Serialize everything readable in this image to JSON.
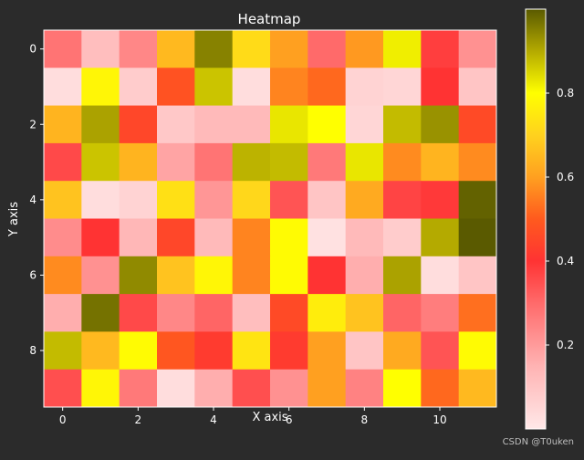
{
  "chart_data": {
    "type": "heatmap",
    "title": "Heatmap",
    "xlabel": "X axis",
    "ylabel": "Y axis",
    "x_tick_labels": [
      "0",
      "2",
      "4",
      "6",
      "8",
      "10"
    ],
    "x_tick_values": [
      0,
      2,
      4,
      6,
      8,
      10
    ],
    "y_tick_labels": [
      "0",
      "2",
      "4",
      "6",
      "8"
    ],
    "y_tick_values": [
      0,
      2,
      4,
      6,
      8
    ],
    "xlim": [
      -0.5,
      11.5
    ],
    "ylim": [
      9.5,
      -0.5
    ],
    "n_cols": 12,
    "n_rows": 10,
    "grid": false,
    "colormap": "pink-red-orange-yellow-olive",
    "color_stops": [
      {
        "v": 0.0,
        "color": "#ffe8e8"
      },
      {
        "v": 0.15,
        "color": "#ffb3b3"
      },
      {
        "v": 0.3,
        "color": "#ff6a6a"
      },
      {
        "v": 0.4,
        "color": "#ff3333"
      },
      {
        "v": 0.5,
        "color": "#ff5a1e"
      },
      {
        "v": 0.6,
        "color": "#ffa020"
      },
      {
        "v": 0.7,
        "color": "#ffd21e"
      },
      {
        "v": 0.8,
        "color": "#ffff00"
      },
      {
        "v": 0.9,
        "color": "#b4aa00"
      },
      {
        "v": 1.0,
        "color": "#5a5a00"
      }
    ],
    "values": [
      [
        0.28,
        0.12,
        0.24,
        0.65,
        0.95,
        0.72,
        0.6,
        0.3,
        0.59,
        0.82,
        0.38,
        0.22
      ],
      [
        0.03,
        0.78,
        0.08,
        0.48,
        0.87,
        0.03,
        0.56,
        0.52,
        0.06,
        0.05,
        0.4,
        0.1
      ],
      [
        0.64,
        0.91,
        0.45,
        0.09,
        0.13,
        0.13,
        0.83,
        0.8,
        0.05,
        0.88,
        0.93,
        0.46
      ],
      [
        0.36,
        0.87,
        0.64,
        0.18,
        0.28,
        0.89,
        0.88,
        0.27,
        0.83,
        0.57,
        0.64,
        0.57
      ],
      [
        0.67,
        0.03,
        0.06,
        0.73,
        0.21,
        0.71,
        0.34,
        0.1,
        0.62,
        0.37,
        0.39,
        0.99
      ],
      [
        0.23,
        0.4,
        0.14,
        0.45,
        0.13,
        0.56,
        0.79,
        0.02,
        0.13,
        0.08,
        0.9,
        1.0
      ],
      [
        0.57,
        0.22,
        0.94,
        0.67,
        0.78,
        0.56,
        0.79,
        0.4,
        0.16,
        0.91,
        0.03,
        0.1
      ],
      [
        0.16,
        0.97,
        0.36,
        0.24,
        0.31,
        0.12,
        0.46,
        0.76,
        0.67,
        0.31,
        0.26,
        0.53
      ],
      [
        0.88,
        0.65,
        0.79,
        0.49,
        0.42,
        0.74,
        0.42,
        0.6,
        0.1,
        0.62,
        0.34,
        0.79
      ],
      [
        0.35,
        0.78,
        0.27,
        0.03,
        0.16,
        0.35,
        0.22,
        0.6,
        0.25,
        0.8,
        0.52,
        0.65
      ]
    ],
    "colorbar": {
      "range": [
        0.0,
        1.0
      ],
      "tick_values": [
        0.2,
        0.4,
        0.6,
        0.8
      ],
      "tick_labels": [
        "0.2",
        "0.4",
        "0.6",
        "0.8"
      ]
    }
  },
  "watermark": "CSDN @T0uken",
  "colors": {
    "background": "#2b2b2b",
    "text": "#ffffff",
    "axes_border": "#ffffff"
  }
}
